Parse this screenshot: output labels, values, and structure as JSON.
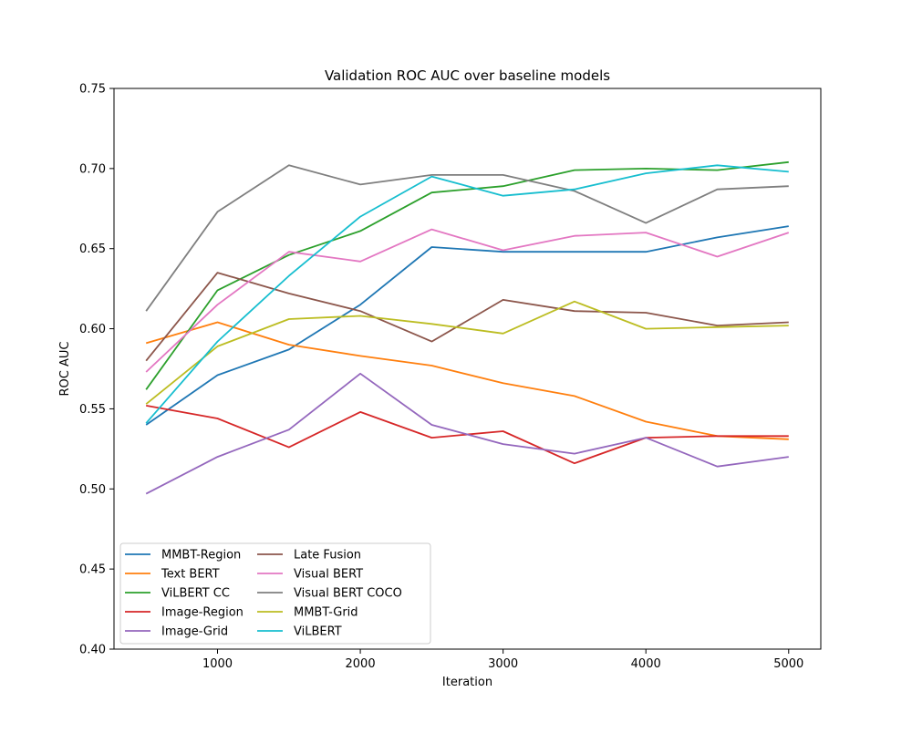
{
  "chart_data": {
    "type": "line",
    "title": "Validation ROC AUC over baseline models",
    "xlabel": "Iteration",
    "ylabel": "ROC AUC",
    "xlim": [
      275,
      5225
    ],
    "ylim": [
      0.4,
      0.75
    ],
    "xticks": [
      1000,
      2000,
      3000,
      4000,
      5000
    ],
    "xtick_labels": [
      "1000",
      "2000",
      "3000",
      "4000",
      "5000"
    ],
    "yticks": [
      0.4,
      0.45,
      0.5,
      0.55,
      0.6,
      0.65,
      0.7,
      0.75
    ],
    "ytick_labels": [
      "0.40",
      "0.45",
      "0.50",
      "0.55",
      "0.60",
      "0.65",
      "0.70",
      "0.75"
    ],
    "grid": false,
    "legend_position": "lower-left",
    "legend_columns": 2,
    "x": [
      500,
      1000,
      1500,
      2000,
      2500,
      3000,
      3500,
      4000,
      4500,
      5000
    ],
    "series": [
      {
        "name": "MMBT-Region",
        "color": "#1f77b4",
        "values": [
          0.54,
          0.571,
          0.587,
          0.615,
          0.651,
          0.648,
          0.648,
          0.648,
          0.657,
          0.664
        ]
      },
      {
        "name": "Text BERT",
        "color": "#ff7f0e",
        "values": [
          0.591,
          0.604,
          0.59,
          0.583,
          0.577,
          0.566,
          0.558,
          0.542,
          0.533,
          0.531
        ]
      },
      {
        "name": "ViLBERT CC",
        "color": "#2ca02c",
        "values": [
          0.562,
          0.624,
          0.646,
          0.661,
          0.685,
          0.689,
          0.699,
          0.7,
          0.699,
          0.704
        ]
      },
      {
        "name": "Image-Region",
        "color": "#d62728",
        "values": [
          0.552,
          0.544,
          0.526,
          0.548,
          0.532,
          0.536,
          0.516,
          0.532,
          0.533,
          0.533
        ]
      },
      {
        "name": "Image-Grid",
        "color": "#9467bd",
        "values": [
          0.497,
          0.52,
          0.537,
          0.572,
          0.54,
          0.528,
          0.522,
          0.532,
          0.514,
          0.52
        ]
      },
      {
        "name": "Late Fusion",
        "color": "#8c564b",
        "values": [
          0.58,
          0.635,
          0.622,
          0.611,
          0.592,
          0.618,
          0.611,
          0.61,
          0.602,
          0.604
        ]
      },
      {
        "name": "Visual BERT",
        "color": "#e377c2",
        "values": [
          0.573,
          0.615,
          0.648,
          0.642,
          0.662,
          0.649,
          0.658,
          0.66,
          0.645,
          0.66
        ]
      },
      {
        "name": "Visual BERT COCO",
        "color": "#7f7f7f",
        "values": [
          0.611,
          0.673,
          0.702,
          0.69,
          0.696,
          0.696,
          0.686,
          0.666,
          0.687,
          0.689
        ]
      },
      {
        "name": "MMBT-Grid",
        "color": "#bcbd22",
        "values": [
          0.553,
          0.589,
          0.606,
          0.608,
          0.603,
          0.597,
          0.617,
          0.6,
          0.601,
          0.602
        ]
      },
      {
        "name": "ViLBERT",
        "color": "#17becf",
        "values": [
          0.541,
          0.592,
          0.633,
          0.67,
          0.695,
          0.683,
          0.687,
          0.697,
          0.702,
          0.698
        ]
      }
    ]
  }
}
